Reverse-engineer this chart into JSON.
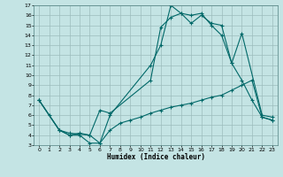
{
  "xlabel": "Humidex (Indice chaleur)",
  "xlim": [
    -0.5,
    23.5
  ],
  "ylim": [
    3,
    17
  ],
  "xticks": [
    0,
    1,
    2,
    3,
    4,
    5,
    6,
    7,
    8,
    9,
    10,
    11,
    12,
    13,
    14,
    15,
    16,
    17,
    18,
    19,
    20,
    21,
    22,
    23
  ],
  "yticks": [
    3,
    4,
    5,
    6,
    7,
    8,
    9,
    10,
    11,
    12,
    13,
    14,
    15,
    16,
    17
  ],
  "bg_color": "#c4e4e4",
  "grid_color": "#9cbcbc",
  "line_color": "#006868",
  "line1_x": [
    0,
    1,
    2,
    3,
    4,
    5,
    6,
    7,
    11,
    12,
    13,
    14,
    15,
    16,
    17,
    18,
    19,
    20,
    21,
    22,
    23
  ],
  "line1_y": [
    7.5,
    6.0,
    4.5,
    4.0,
    4.0,
    3.2,
    3.2,
    6.0,
    11.0,
    13.0,
    17.0,
    16.2,
    15.2,
    16.0,
    15.2,
    15.0,
    11.2,
    9.5,
    7.5,
    5.8,
    5.5
  ],
  "line2_x": [
    0,
    2,
    3,
    4,
    5,
    6,
    7,
    11,
    12,
    13,
    14,
    15,
    16,
    17,
    18,
    19,
    20,
    22,
    23
  ],
  "line2_y": [
    7.5,
    4.5,
    4.0,
    4.2,
    4.0,
    6.5,
    6.2,
    9.5,
    14.8,
    15.8,
    16.2,
    16.0,
    16.2,
    15.0,
    14.0,
    11.2,
    14.2,
    6.0,
    5.8
  ],
  "line3_x": [
    0,
    2,
    3,
    5,
    6,
    7,
    8,
    9,
    10,
    11,
    12,
    13,
    14,
    15,
    16,
    17,
    18,
    19,
    20,
    21,
    22,
    23
  ],
  "line3_y": [
    7.5,
    4.5,
    4.2,
    4.0,
    3.2,
    4.5,
    5.2,
    5.5,
    5.8,
    6.2,
    6.5,
    6.8,
    7.0,
    7.2,
    7.5,
    7.8,
    8.0,
    8.5,
    9.0,
    9.5,
    5.8,
    5.5
  ]
}
